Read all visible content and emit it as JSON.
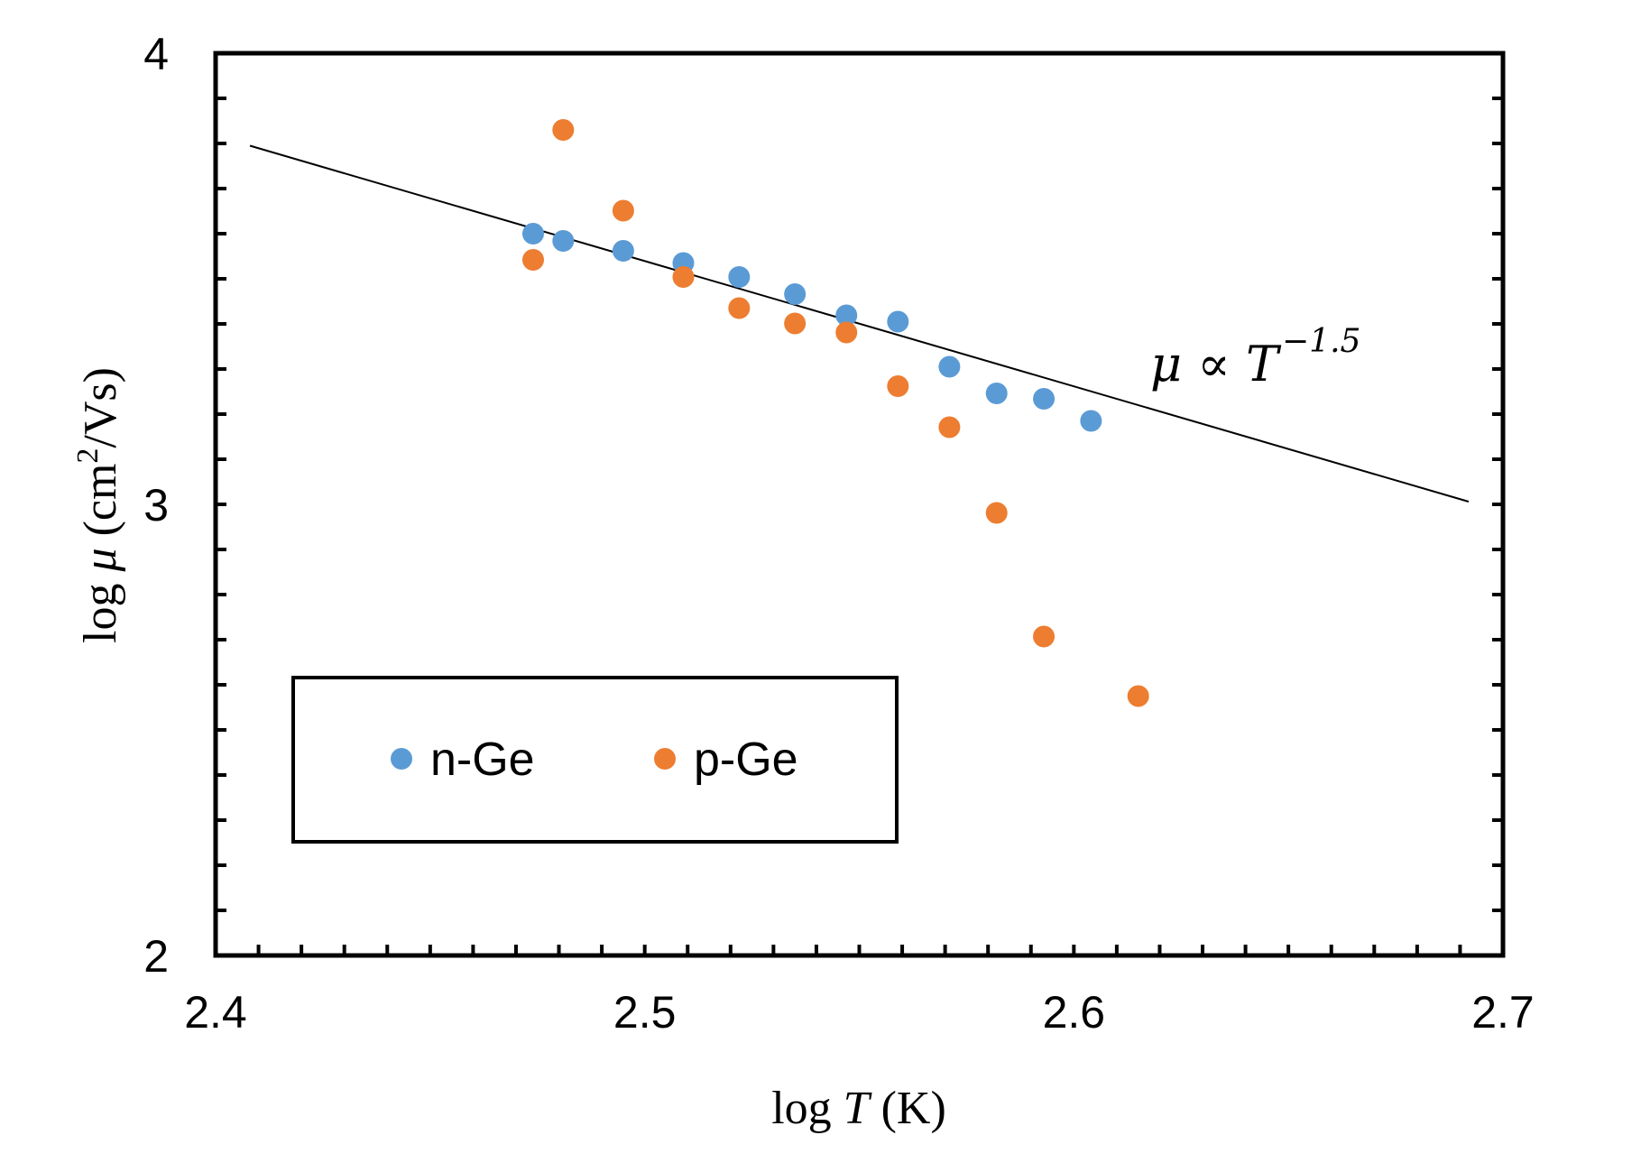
{
  "chart_data": {
    "type": "scatter",
    "xlabel": {
      "prefix": "log ",
      "var": "T",
      "unit": " (K)"
    },
    "ylabel": {
      "prefix": "log ",
      "var": "μ",
      "unit_open": "  (cm",
      "unit_sup": "2",
      "unit_close": "/Vs)"
    },
    "xlim": [
      2.4,
      2.7
    ],
    "ylim": [
      2,
      4
    ],
    "x_ticks": [
      "2.4",
      "2.5",
      "2.6",
      "2.7"
    ],
    "y_ticks": [
      "2",
      "3",
      "4"
    ],
    "x_minor_step": 0.01,
    "y_minor_step": 0.1,
    "grid": false,
    "legend_position": "bottom-left",
    "series": [
      {
        "name": "n-Ge",
        "color": "#5B9BD5",
        "x": [
          2.474,
          2.481,
          2.495,
          2.509,
          2.522,
          2.535,
          2.547,
          2.559,
          2.571,
          2.582,
          2.593,
          2.604
        ],
        "y": [
          3.6,
          3.584,
          3.562,
          3.535,
          3.504,
          3.466,
          3.419,
          3.405,
          3.305,
          3.246,
          3.234,
          3.185
        ]
      },
      {
        "name": "p-Ge",
        "color": "#ED7D31",
        "x": [
          2.474,
          2.481,
          2.495,
          2.509,
          2.522,
          2.535,
          2.547,
          2.559,
          2.571,
          2.582,
          2.593,
          2.615
        ],
        "y": [
          3.542,
          3.83,
          3.651,
          3.504,
          3.435,
          3.401,
          3.381,
          3.262,
          3.171,
          2.981,
          2.707,
          2.575
        ]
      }
    ],
    "fit_line": {
      "color": "#000000",
      "x": [
        2.408,
        2.692
      ],
      "y": [
        3.795,
        3.006
      ]
    },
    "annotation": {
      "text": "μ ∝ T",
      "sup": "−1.5"
    }
  }
}
